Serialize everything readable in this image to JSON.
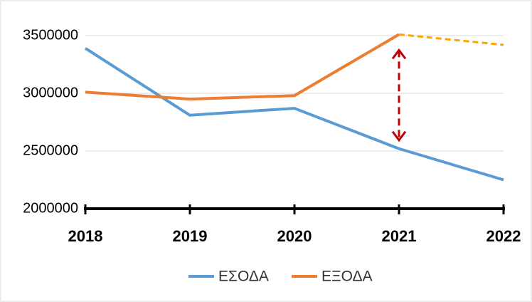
{
  "chart_data": {
    "type": "line",
    "categories": [
      "2018",
      "2019",
      "2020",
      "2021",
      "2022"
    ],
    "series": [
      {
        "name": "ΕΣΟΔΑ",
        "color": "#5b9bd5",
        "values": [
          3390000,
          2810000,
          2870000,
          2520000,
          2250000
        ]
      },
      {
        "name": "ΕΞΟΔΑ",
        "color": "#ed7d31",
        "values": [
          3010000,
          2950000,
          2980000,
          3510000,
          3420000
        ],
        "dashed_from": 3,
        "dashed_color": "#ffa500"
      }
    ],
    "ylim": [
      2000000,
      3500000
    ],
    "yticks": [
      2000000,
      2500000,
      3000000,
      3500000
    ],
    "grid": true,
    "legend": "bottom"
  }
}
